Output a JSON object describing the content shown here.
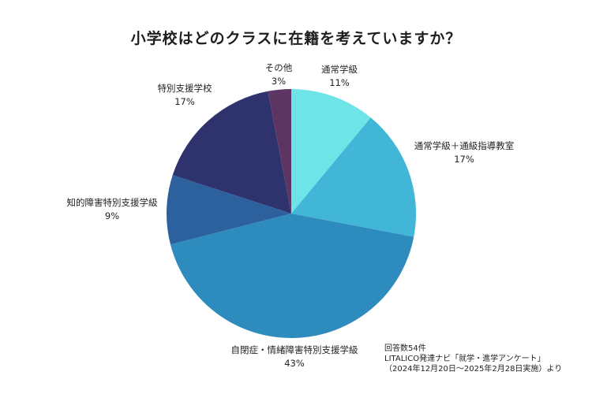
{
  "chart_data": {
    "type": "pie",
    "title": "小学校はどのクラスに在籍を考えていますか？",
    "start_angle_deg": 0,
    "direction": "clockwise",
    "slices": [
      {
        "label": "通常学級",
        "value": 11,
        "value_label": "11%",
        "color": "#6ce4e8"
      },
      {
        "label": "通常学級＋通級指導教室",
        "value": 17,
        "value_label": "17%",
        "color": "#42b6d6"
      },
      {
        "label": "自閉症・情緒障害特別支援学級",
        "value": 43,
        "value_label": "43%",
        "color": "#2d8bbd"
      },
      {
        "label": "知的障害特別支援学級",
        "value": 9,
        "value_label": "9%",
        "color": "#2c619d"
      },
      {
        "label": "特別支援学校",
        "value": 17,
        "value_label": "17%",
        "color": "#2f336d"
      },
      {
        "label": "その他",
        "value": 3,
        "value_label": "3%",
        "color": "#5c3563"
      }
    ]
  },
  "notes": {
    "responses": "回答数54件",
    "source": "LITALICO発達ナビ「就学・進学アンケート」",
    "period": "（2024年12月20日～2025年2月28日実施）より"
  }
}
